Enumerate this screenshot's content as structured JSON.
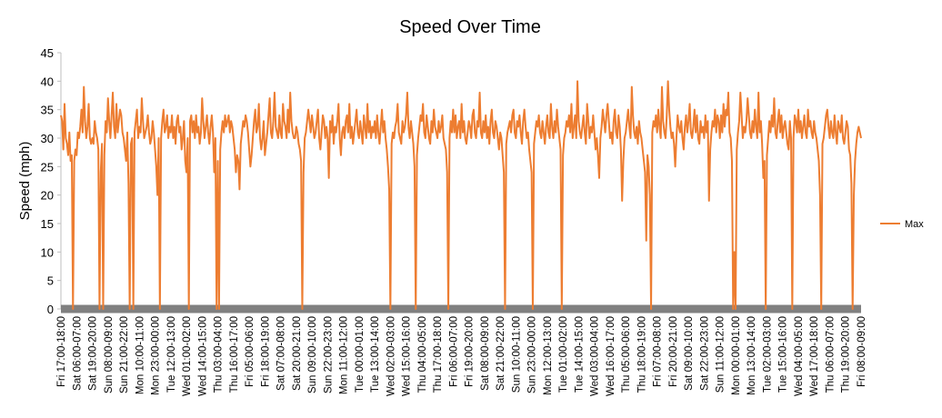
{
  "chart_data": {
    "type": "line",
    "title": "Speed Over Time",
    "y_label": "Speed (mph)",
    "ylim": [
      0,
      45
    ],
    "yticks": [
      0,
      5,
      10,
      15,
      20,
      25,
      30,
      35,
      40,
      45
    ],
    "legend": "right",
    "categories": [
      "Fri 17:00-18:00",
      null,
      null,
      null,
      null,
      null,
      null,
      null,
      null,
      null,
      null,
      null,
      null,
      "Sat 06:00-07:00",
      null,
      null,
      null,
      null,
      null,
      null,
      null,
      null,
      null,
      null,
      null,
      null,
      "Sat 19:00-20:00",
      null,
      null,
      null,
      null,
      null,
      null,
      null,
      null,
      null,
      null,
      null,
      null,
      "Sun 08:00-09:00",
      null,
      null,
      null,
      null,
      null,
      null,
      null,
      null,
      null,
      null,
      null,
      null,
      "Sun 21:00-22:00",
      null,
      null,
      null,
      null,
      null,
      null,
      null,
      null,
      null,
      null,
      null,
      null,
      "Mon 10:00-11:00",
      null,
      null,
      null,
      null,
      null,
      null,
      null,
      null,
      null,
      null,
      null,
      null,
      "Mon 23:00-00:00",
      null,
      null,
      null,
      null,
      null,
      null,
      null,
      null,
      null,
      null,
      null,
      null,
      "Tue 12:00-13:00",
      null,
      null,
      null,
      null,
      null,
      null,
      null,
      null,
      null,
      null,
      null,
      null,
      "Wed 01:00-02:00",
      null,
      null,
      null,
      null,
      null,
      null,
      null,
      null,
      null,
      null,
      null,
      null,
      "Wed 14:00-15:00",
      null,
      null,
      null,
      null,
      null,
      null,
      null,
      null,
      null,
      null,
      null,
      null,
      "Thu 03:00-04:00",
      null,
      null,
      null,
      null,
      null,
      null,
      null,
      null,
      null,
      null,
      null,
      null,
      "Thu 16:00-17:00",
      null,
      null,
      null,
      null,
      null,
      null,
      null,
      null,
      null,
      null,
      null,
      null,
      "Fri 05:00-06:00",
      null,
      null,
      null,
      null,
      null,
      null,
      null,
      null,
      null,
      null,
      null,
      null,
      "Fri 18:00-19:00",
      null,
      null,
      null,
      null,
      null,
      null,
      null,
      null,
      null,
      null,
      null,
      null,
      "Sat 07:00-08:00",
      null,
      null,
      null,
      null,
      null,
      null,
      null,
      null,
      null,
      null,
      null,
      null,
      "Sat 20:00-21:00",
      null,
      null,
      null,
      null,
      null,
      null,
      null,
      null,
      null,
      null,
      null,
      null,
      "Sun 09:00-10:00",
      null,
      null,
      null,
      null,
      null,
      null,
      null,
      null,
      null,
      null,
      null,
      null,
      "Sun 22:00-23:00",
      null,
      null,
      null,
      null,
      null,
      null,
      null,
      null,
      null,
      null,
      null,
      null,
      "Mon 11:00-12:00",
      null,
      null,
      null,
      null,
      null,
      null,
      null,
      null,
      null,
      null,
      null,
      null,
      "Tue 00:00-01:00",
      null,
      null,
      null,
      null,
      null,
      null,
      null,
      null,
      null,
      null,
      null,
      null,
      "Tue 13:00-14:00",
      null,
      null,
      null,
      null,
      null,
      null,
      null,
      null,
      null,
      null,
      null,
      null,
      "Wed 02:00-03:00",
      null,
      null,
      null,
      null,
      null,
      null,
      null,
      null,
      null,
      null,
      null,
      null,
      "Wed 15:00-16:00",
      null,
      null,
      null,
      null,
      null,
      null,
      null,
      null,
      null,
      null,
      null,
      null,
      "Thu 04:00-05:00",
      null,
      null,
      null,
      null,
      null,
      null,
      null,
      null,
      null,
      null,
      null,
      null,
      "Thu 17:00-18:00",
      null,
      null,
      null,
      null,
      null,
      null,
      null,
      null,
      null,
      null,
      null,
      null,
      "Fri 06:00-07:00",
      null,
      null,
      null,
      null,
      null,
      null,
      null,
      null,
      null,
      null,
      null,
      null,
      "Fri 19:00-20:00",
      null,
      null,
      null,
      null,
      null,
      null,
      null,
      null,
      null,
      null,
      null,
      null,
      "Sat 08:00-09:00",
      null,
      null,
      null,
      null,
      null,
      null,
      null,
      null,
      null,
      null,
      null,
      null,
      "Sat 21:00-22:00",
      null,
      null,
      null,
      null,
      null,
      null,
      null,
      null,
      null,
      null,
      null,
      null,
      "Sun 10:00-11:00",
      null,
      null,
      null,
      null,
      null,
      null,
      null,
      null,
      null,
      null,
      null,
      null,
      "Sun 23:00-00:00",
      null,
      null,
      null,
      null,
      null,
      null,
      null,
      null,
      null,
      null,
      null,
      null,
      "Mon 12:00-13:00",
      null,
      null,
      null,
      null,
      null,
      null,
      null,
      null,
      null,
      null,
      null,
      null,
      "Tue 01:00-02:00",
      null,
      null,
      null,
      null,
      null,
      null,
      null,
      null,
      null,
      null,
      null,
      null,
      "Tue 14:00-15:00",
      null,
      null,
      null,
      null,
      null,
      null,
      null,
      null,
      null,
      null,
      null,
      null,
      "Wed 03:00-04:00",
      null,
      null,
      null,
      null,
      null,
      null,
      null,
      null,
      null,
      null,
      null,
      null,
      "Wed 16:00-17:00",
      null,
      null,
      null,
      null,
      null,
      null,
      null,
      null,
      null,
      null,
      null,
      null,
      "Thu 05:00-06:00",
      null,
      null,
      null,
      null,
      null,
      null,
      null,
      null,
      null,
      null,
      null,
      null,
      "Thu 18:00-19:00",
      null,
      null,
      null,
      null,
      null,
      null,
      null,
      null,
      null,
      null,
      null,
      null,
      "Fri 07:00-08:00",
      null,
      null,
      null,
      null,
      null,
      null,
      null,
      null,
      null,
      null,
      null,
      null,
      "Fri 20:00-21:00",
      null,
      null,
      null,
      null,
      null,
      null,
      null,
      null,
      null,
      null,
      null,
      null,
      "Sat 09:00-10:00",
      null,
      null,
      null,
      null,
      null,
      null,
      null,
      null,
      null,
      null,
      null,
      null,
      "Sat 22:00-23:00",
      null,
      null,
      null,
      null,
      null,
      null,
      null,
      null,
      null,
      null,
      null,
      null,
      "Sun 11:00-12:00",
      null,
      null,
      null,
      null,
      null,
      null,
      null,
      null,
      null,
      null,
      null,
      null,
      "Mon 00:00-01:00",
      null,
      null,
      null,
      null,
      null,
      null,
      null,
      null,
      null,
      null,
      null,
      null,
      "Mon 13:00-14:00",
      null,
      null,
      null,
      null,
      null,
      null,
      null,
      null,
      null,
      null,
      null,
      null,
      "Tue 02:00-03:00",
      null,
      null,
      null,
      null,
      null,
      null,
      null,
      null,
      null,
      null,
      null,
      null,
      "Tue 15:00-16:00",
      null,
      null,
      null,
      null,
      null,
      null,
      null,
      null,
      null,
      null,
      null,
      null,
      "Wed 04:00-05:00",
      null,
      null,
      null,
      null,
      null,
      null,
      null,
      null,
      null,
      null,
      null,
      null,
      "Wed 17:00-18:00",
      null,
      null,
      null,
      null,
      null,
      null,
      null,
      null,
      null,
      null,
      null,
      null,
      "Thu 06:00-07:00",
      null,
      null,
      null,
      null,
      null,
      null,
      null,
      null,
      null,
      null,
      null,
      null,
      "Thu 19:00-20:00",
      null,
      null,
      null,
      null,
      null,
      null,
      null,
      null,
      null,
      null,
      null,
      null,
      "Fri 08:00-09:00"
    ],
    "series": [
      {
        "name": "Max",
        "color": "#ed7d31",
        "values": [
          34,
          33,
          28,
          36,
          30,
          29,
          27,
          31,
          26,
          27,
          0,
          26,
          28,
          27,
          31,
          30,
          32,
          35,
          31,
          39,
          33,
          30,
          32,
          36,
          30,
          29,
          30,
          29,
          33,
          31,
          30,
          28,
          0,
          24,
          29,
          0,
          27,
          33,
          31,
          37,
          33,
          30,
          34,
          38,
          32,
          30,
          36,
          31,
          33,
          35,
          34,
          31,
          30,
          28,
          26,
          31,
          22,
          0,
          29,
          30,
          0,
          31,
          33,
          35,
          30,
          32,
          31,
          37,
          33,
          30,
          31,
          32,
          34,
          31,
          29,
          30,
          33,
          31,
          28,
          25,
          20,
          30,
          0,
          30,
          33,
          35,
          31,
          32,
          34,
          30,
          32,
          31,
          34,
          30,
          32,
          29,
          33,
          34,
          31,
          32,
          28,
          30,
          33,
          26,
          24,
          30,
          0,
          33,
          34,
          31,
          33,
          30,
          34,
          31,
          32,
          29,
          31,
          37,
          33,
          30,
          32,
          34,
          31,
          29,
          32,
          34,
          31,
          24,
          30,
          0,
          26,
          0,
          28,
          31,
          33,
          31,
          34,
          32,
          33,
          34,
          31,
          33,
          32,
          30,
          28,
          24,
          27,
          26,
          21,
          29,
          31,
          33,
          32,
          34,
          33,
          31,
          28,
          25,
          27,
          30,
          33,
          35,
          31,
          32,
          36,
          30,
          28,
          30,
          33,
          27,
          29,
          31,
          34,
          37,
          31,
          30,
          33,
          38,
          32,
          31,
          30,
          34,
          31,
          30,
          36,
          33,
          32,
          30,
          35,
          31,
          38,
          33,
          31,
          30,
          30,
          32,
          31,
          29,
          28,
          26,
          0,
          24,
          30,
          31,
          33,
          35,
          33,
          31,
          34,
          32,
          30,
          31,
          33,
          35,
          30,
          28,
          31,
          34,
          33,
          30,
          32,
          30,
          23,
          33,
          31,
          34,
          29,
          32,
          31,
          33,
          36,
          30,
          27,
          31,
          32,
          30,
          33,
          34,
          31,
          36,
          30,
          32,
          29,
          31,
          33,
          35,
          31,
          30,
          33,
          31,
          29,
          34,
          32,
          30,
          36,
          31,
          33,
          30,
          32,
          31,
          33,
          30,
          34,
          31,
          29,
          32,
          35,
          31,
          33,
          30,
          28,
          25,
          21,
          0,
          29,
          31,
          30,
          32,
          33,
          36,
          31,
          30,
          29,
          33,
          31,
          32,
          34,
          38,
          32,
          30,
          33,
          31,
          29,
          25,
          0,
          27,
          30,
          32,
          34,
          33,
          36,
          31,
          30,
          34,
          32,
          30,
          29,
          33,
          31,
          35,
          32,
          31,
          30,
          33,
          31,
          32,
          34,
          30,
          29,
          28,
          24,
          0,
          30,
          33,
          31,
          35,
          31,
          34,
          30,
          32,
          33,
          30,
          36,
          31,
          33,
          30,
          29,
          31,
          33,
          32,
          30,
          34,
          35,
          31,
          30,
          33,
          32,
          38,
          31,
          30,
          33,
          31,
          34,
          30,
          32,
          29,
          33,
          35,
          31,
          30,
          33,
          32,
          30,
          28,
          31,
          30,
          27,
          24,
          0,
          29,
          31,
          32,
          33,
          31,
          34,
          35,
          31,
          30,
          33,
          32,
          34,
          31,
          29,
          33,
          35,
          32,
          30,
          31,
          28,
          26,
          24,
          0,
          29,
          31,
          33,
          32,
          34,
          31,
          30,
          33,
          31,
          29,
          32,
          34,
          31,
          30,
          36,
          32,
          30,
          33,
          31,
          35,
          32,
          30,
          28,
          0,
          27,
          30,
          31,
          33,
          32,
          34,
          31,
          36,
          30,
          32,
          34,
          30,
          40,
          33,
          31,
          30,
          32,
          34,
          31,
          29,
          36,
          33,
          30,
          32,
          31,
          34,
          31,
          28,
          30,
          27,
          23,
          30,
          32,
          35,
          33,
          31,
          34,
          36,
          33,
          30,
          31,
          29,
          33,
          35,
          31,
          30,
          34,
          32,
          28,
          19,
          26,
          30,
          31,
          33,
          35,
          32,
          30,
          39,
          34,
          31,
          30,
          32,
          29,
          33,
          31,
          30,
          28,
          26,
          24,
          12,
          27,
          25,
          20,
          0,
          31,
          33,
          32,
          34,
          31,
          35,
          32,
          30,
          39,
          33,
          31,
          30,
          34,
          40,
          35,
          32,
          30,
          31,
          29,
          25,
          30,
          34,
          32,
          31,
          33,
          30,
          28,
          32,
          34,
          31,
          33,
          36,
          31,
          30,
          32,
          35,
          31,
          34,
          30,
          29,
          33,
          31,
          32,
          30,
          34,
          31,
          33,
          19,
          28,
          31,
          33,
          32,
          35,
          31,
          34,
          33,
          30,
          34,
          31,
          36,
          32,
          35,
          34,
          38,
          31,
          30,
          26,
          0,
          10,
          0,
          28,
          31,
          33,
          38,
          34,
          30,
          32,
          31,
          33,
          37,
          34,
          31,
          30,
          33,
          31,
          35,
          32,
          30,
          38,
          31,
          33,
          29,
          23,
          26,
          0,
          27,
          30,
          33,
          31,
          34,
          32,
          37,
          31,
          30,
          33,
          35,
          31,
          34,
          30,
          32,
          33,
          31,
          29,
          28,
          33,
          30,
          0,
          30,
          34,
          33,
          31,
          35,
          31,
          33,
          30,
          32,
          34,
          31,
          30,
          35,
          32,
          33,
          31,
          30,
          33,
          31,
          30,
          28,
          26,
          20,
          0,
          29,
          30,
          32,
          34,
          35,
          32,
          30,
          33,
          31,
          30,
          34,
          31,
          29,
          33,
          32,
          31,
          34,
          30,
          29,
          31,
          33,
          32,
          28,
          27,
          22,
          0,
          20,
          26,
          29,
          31,
          32,
          31,
          30
        ]
      }
    ]
  }
}
